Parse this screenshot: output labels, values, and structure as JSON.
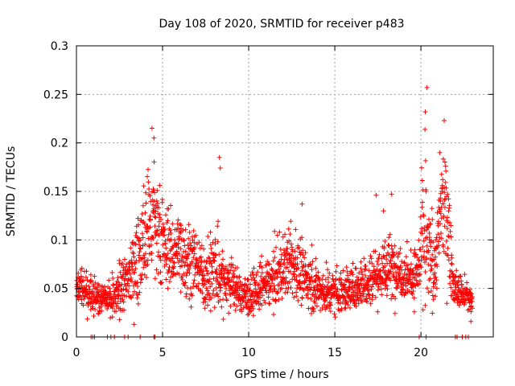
{
  "chart_data": {
    "type": "scatter",
    "title": "Day 108 of 2020, SRMTID for receiver p483",
    "xlabel": "GPS time / hours",
    "ylabel": "SRMTID / TECUs",
    "xlim": [
      0,
      24.2
    ],
    "ylim": [
      0,
      0.3
    ],
    "x_ticks": [
      0,
      5,
      10,
      15,
      20
    ],
    "x_tick_labels": [
      "0",
      "5",
      "10",
      "15",
      "20"
    ],
    "y_ticks": [
      0,
      0.05,
      0.1,
      0.15,
      0.2,
      0.25,
      0.3
    ],
    "y_tick_labels": [
      "0",
      "0.05",
      "0.1",
      "0.15",
      "0.2",
      "0.25",
      "0.3"
    ],
    "grid": true,
    "marker": "+",
    "color": "#ff0000",
    "series": [
      {
        "name": "SRMTID",
        "profile_x": [
          0,
          0.5,
          1.0,
          1.5,
          2.0,
          2.5,
          3.0,
          3.5,
          4.0,
          4.3,
          4.6,
          5.0,
          5.5,
          6.0,
          6.5,
          7.0,
          7.5,
          8.0,
          8.5,
          9.0,
          9.5,
          10.0,
          10.5,
          11.0,
          11.5,
          12.0,
          12.5,
          13.0,
          13.5,
          14.0,
          14.5,
          15.0,
          15.5,
          16.0,
          16.5,
          17.0,
          17.5,
          18.0,
          18.5,
          19.0,
          19.5,
          19.9,
          20.1,
          20.4,
          20.8,
          21.2,
          21.5,
          21.9,
          22.3,
          22.7,
          23.0
        ],
        "profile_center": [
          0.045,
          0.05,
          0.045,
          0.04,
          0.035,
          0.045,
          0.06,
          0.08,
          0.1,
          0.12,
          0.11,
          0.095,
          0.085,
          0.09,
          0.08,
          0.07,
          0.06,
          0.065,
          0.06,
          0.055,
          0.045,
          0.04,
          0.045,
          0.055,
          0.06,
          0.07,
          0.075,
          0.065,
          0.055,
          0.05,
          0.045,
          0.05,
          0.045,
          0.05,
          0.055,
          0.06,
          0.065,
          0.07,
          0.07,
          0.065,
          0.06,
          0.07,
          0.1,
          0.09,
          0.06,
          0.14,
          0.13,
          0.05,
          0.045,
          0.04,
          0.035
        ],
        "profile_spread": [
          0.015,
          0.02,
          0.018,
          0.015,
          0.015,
          0.018,
          0.025,
          0.035,
          0.045,
          0.06,
          0.05,
          0.035,
          0.03,
          0.035,
          0.03,
          0.025,
          0.022,
          0.04,
          0.025,
          0.02,
          0.018,
          0.015,
          0.018,
          0.02,
          0.022,
          0.025,
          0.03,
          0.025,
          0.02,
          0.018,
          0.018,
          0.02,
          0.018,
          0.018,
          0.02,
          0.022,
          0.025,
          0.03,
          0.025,
          0.02,
          0.02,
          0.025,
          0.07,
          0.05,
          0.02,
          0.05,
          0.05,
          0.015,
          0.015,
          0.012,
          0.012
        ],
        "points_per_hour": 95,
        "spikes": [
          [
            4.5,
            0.205
          ],
          [
            8.3,
            0.185
          ],
          [
            8.35,
            0.174
          ],
          [
            20.25,
            0.232
          ],
          [
            20.35,
            0.257
          ],
          [
            21.35,
            0.223
          ],
          [
            21.1,
            0.19
          ],
          [
            17.4,
            0.146
          ],
          [
            18.3,
            0.147
          ],
          [
            13.1,
            0.137
          ],
          [
            22.9,
            0.016
          ]
        ],
        "zero_points_x": [
          0.85,
          0.95,
          1.05,
          1.8,
          2.0,
          2.2,
          2.8,
          3.0,
          3.7,
          4.5,
          4.55,
          19.9,
          20.3,
          22.0,
          22.1,
          22.4,
          22.6,
          22.75
        ]
      }
    ]
  }
}
